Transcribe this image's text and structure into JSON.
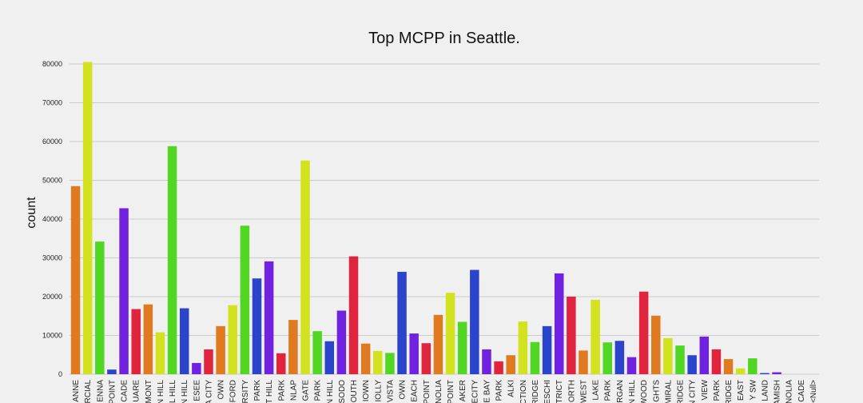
{
  "chart_data": {
    "type": "bar",
    "title": "Top MCPP in Seattle.",
    "xlabel": "",
    "ylabel": "count",
    "ylim": [
      0,
      80000
    ],
    "yticks": [
      0,
      10000,
      20000,
      30000,
      40000,
      50000,
      60000,
      70000,
      80000
    ],
    "grid": true,
    "legend": "none",
    "categories": [
      "ANNE",
      "RCIAL",
      "ENNA",
      "POINT",
      "CADE",
      "UARE",
      "MONT",
      "N HILL",
      "L HILL",
      "N HILL",
      "ESEE",
      "A CITY",
      "OWN",
      "FORD",
      "RSITY",
      "PARK",
      "T HILL",
      "PARK",
      "NLAP",
      "GATE",
      "PARK",
      "N HILL",
      "SODO",
      "OUTH",
      "IOWN",
      "IOLLY",
      "VISTA",
      "OWN",
      "EACH",
      "POINT",
      "NOLIA",
      "POINT",
      "AKER",
      "ECITY",
      "E BAY",
      "PARK",
      "ALKI",
      "CTION",
      "RIDGE",
      "ESCHI",
      "STRICT",
      "ORTH",
      "WEST",
      "LAKE",
      "PARK",
      "RGAN",
      "N HILL",
      "WOOD",
      "GHTS",
      "MIRAL",
      "RIDGE",
      "N CITY",
      "VIEW",
      "PARK",
      "RIDGE",
      "EAST",
      "Y SW",
      "LAND",
      "AMISH",
      "NOLIA",
      "CADE",
      "<Null>"
    ],
    "values": [
      48500,
      80500,
      34200,
      1200,
      42800,
      16800,
      18000,
      10800,
      58800,
      17000,
      2900,
      6400,
      12400,
      17800,
      38300,
      24700,
      29100,
      5400,
      14000,
      55100,
      11100,
      8500,
      16400,
      30400,
      7900,
      6000,
      5500,
      26400,
      10500,
      8000,
      15300,
      21000,
      13500,
      26900,
      6400,
      3300,
      4900,
      13600,
      8300,
      12400,
      26000,
      20000,
      6100,
      19200,
      8200,
      8600,
      4400,
      21300,
      15100,
      9300,
      7400,
      4900,
      9700,
      6400,
      3900,
      1500,
      4100,
      300,
      500,
      0,
      0,
      0
    ],
    "colors": [
      "#e07a20",
      "#d2e21f",
      "#52d624",
      "#2a44cc",
      "#7022e0",
      "#e0243e",
      "#e07a20",
      "#d2e21f",
      "#52d624",
      "#2a44cc",
      "#7022e0",
      "#e0243e",
      "#e07a20",
      "#d2e21f",
      "#52d624",
      "#2a44cc",
      "#7022e0",
      "#e0243e",
      "#e07a20",
      "#d2e21f",
      "#52d624",
      "#2a44cc",
      "#7022e0",
      "#e0243e",
      "#e07a20",
      "#d2e21f",
      "#52d624",
      "#2a44cc",
      "#7022e0",
      "#e0243e",
      "#e07a20",
      "#d2e21f",
      "#52d624",
      "#2a44cc",
      "#7022e0",
      "#e0243e",
      "#e07a20",
      "#d2e21f",
      "#52d624",
      "#2a44cc",
      "#7022e0",
      "#e0243e",
      "#e07a20",
      "#d2e21f",
      "#52d624",
      "#2a44cc",
      "#7022e0",
      "#e0243e",
      "#e07a20",
      "#d2e21f",
      "#52d624",
      "#2a44cc",
      "#7022e0",
      "#e0243e",
      "#e07a20",
      "#d2e21f",
      "#52d624",
      "#2a44cc",
      "#7022e0",
      "#e0243e",
      "#e07a20",
      "#d2e21f"
    ]
  },
  "style": {
    "background": "#f0f0f0",
    "grid_color": "#cbcbcb"
  }
}
